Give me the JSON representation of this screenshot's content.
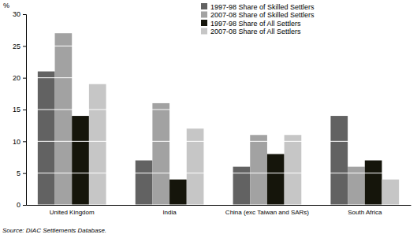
{
  "chart_data": {
    "type": "bar",
    "y_label": "%",
    "categories": [
      "United Kingdom",
      "India",
      "China (exc Taiwan and SARs)",
      "South Africa"
    ],
    "series": [
      {
        "name": "1997-98 Share of Skilled Settlers",
        "color": "#626262",
        "values": [
          21,
          7,
          6,
          14
        ]
      },
      {
        "name": "2007-08 Share of Skilled Settlers",
        "color": "#a2a2a2",
        "values": [
          27,
          16,
          11,
          6
        ]
      },
      {
        "name": "1997-98 Share of All Settlers",
        "color": "#15150b",
        "values": [
          14,
          4,
          8,
          7
        ]
      },
      {
        "name": "2007-08 Share of All Settlers",
        "color": "#c6c6c6",
        "values": [
          19,
          12,
          11,
          4
        ]
      }
    ],
    "ylim": [
      0,
      30
    ],
    "yticks": [
      0,
      5,
      10,
      15,
      20,
      25,
      30
    ],
    "grid": true,
    "legend": "top",
    "annotations": [
      "Source: DIAC Settlements Database."
    ]
  }
}
